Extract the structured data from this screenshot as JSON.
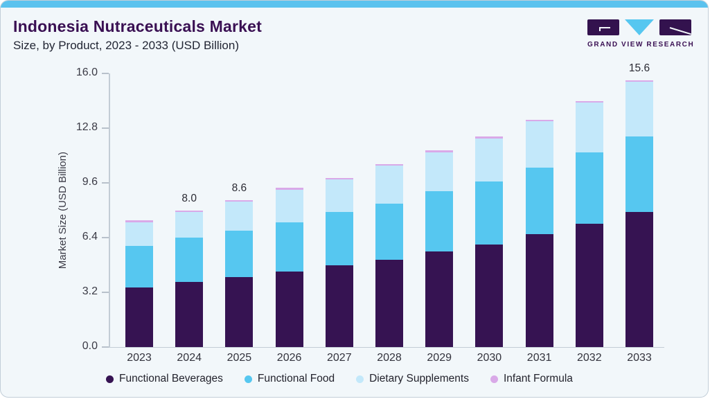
{
  "header": {
    "title": "Indonesia Nutraceuticals Market",
    "subtitle": "Size, by Product, 2023 - 2033 (USD Billion)"
  },
  "logo": {
    "text": "GRAND VIEW RESEARCH"
  },
  "colors": {
    "accent_bar": "#5bc2ee",
    "card_background": "#f2f7fa",
    "title_text": "#3a1053",
    "functional_beverages": "#361352",
    "functional_food": "#56c7f0",
    "dietary_supplements": "#c3e8fa",
    "infant_formula": "#d9a9e8",
    "axis_line": "#c3ccd5"
  },
  "chart_data": {
    "type": "bar",
    "stacked": true,
    "title": "Indonesia Nutraceuticals Market Size, by Product, 2023 - 2033 (USD Billion)",
    "categories": [
      "2023",
      "2024",
      "2025",
      "2026",
      "2027",
      "2028",
      "2029",
      "2030",
      "2031",
      "2032",
      "2033"
    ],
    "series": [
      {
        "name": "Functional Beverages",
        "color": "#361352",
        "values": [
          3.5,
          3.8,
          4.1,
          4.4,
          4.8,
          5.1,
          5.6,
          6.0,
          6.6,
          7.2,
          7.9
        ]
      },
      {
        "name": "Functional Food",
        "color": "#56c7f0",
        "values": [
          2.4,
          2.6,
          2.7,
          2.9,
          3.1,
          3.3,
          3.5,
          3.7,
          3.9,
          4.2,
          4.4
        ]
      },
      {
        "name": "Dietary Supplements",
        "color": "#c3e8fa",
        "values": [
          1.4,
          1.5,
          1.7,
          1.9,
          1.9,
          2.2,
          2.3,
          2.5,
          2.7,
          2.9,
          3.2
        ]
      },
      {
        "name": "Infant Formula",
        "color": "#d9a9e8",
        "values": [
          0.1,
          0.1,
          0.1,
          0.1,
          0.1,
          0.1,
          0.1,
          0.1,
          0.1,
          0.1,
          0.1
        ]
      }
    ],
    "totals": [
      7.4,
      8.0,
      8.6,
      9.3,
      9.9,
      10.7,
      11.5,
      12.3,
      13.3,
      14.4,
      15.6
    ],
    "bar_labels": [
      "",
      "8.0",
      "8.6",
      "",
      "",
      "",
      "",
      "",
      "",
      "",
      "15.6"
    ],
    "ylabel": "Market Size (USD Billion)",
    "yticks": [
      "0.0",
      "3.2",
      "6.4",
      "9.6",
      "12.8",
      "16.0"
    ],
    "ylim": [
      0,
      16
    ],
    "grid": false,
    "legend_position": "bottom"
  }
}
